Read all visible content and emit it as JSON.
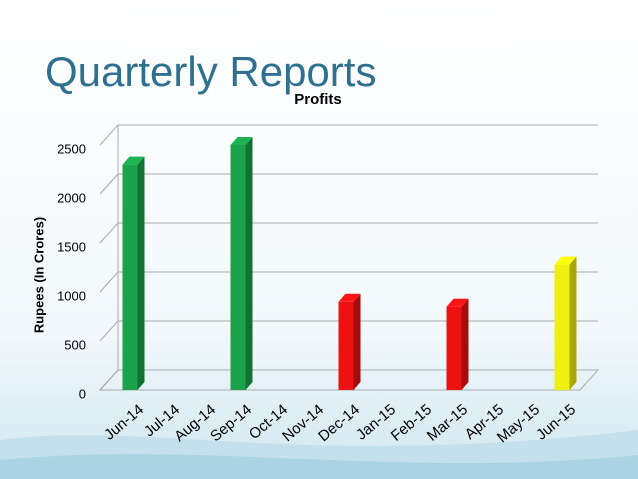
{
  "header": {
    "title": "Quarterly Reports"
  },
  "chart_data": {
    "type": "bar",
    "title": "Profits",
    "y_label": "Rupees (In Crores)",
    "categories": [
      "Jun-14",
      "Jul-14",
      "Aug-14",
      "Sep-14",
      "Oct-14",
      "Nov-14",
      "Dec-14",
      "Jan-15",
      "Feb-15",
      "Mar-15",
      "Apr-15",
      "May-15",
      "Jun-15"
    ],
    "values": [
      2300,
      null,
      null,
      2500,
      null,
      null,
      900,
      null,
      null,
      850,
      null,
      null,
      1280
    ],
    "colors": [
      "#1aa34a",
      null,
      null,
      "#1aa34a",
      null,
      null,
      "#ee1111",
      null,
      null,
      "#ee1111",
      null,
      null,
      "#f0f010"
    ],
    "ylim": [
      0,
      2500
    ],
    "yticks": [
      0,
      500,
      1000,
      1500,
      2000,
      2500
    ],
    "grid": true
  }
}
